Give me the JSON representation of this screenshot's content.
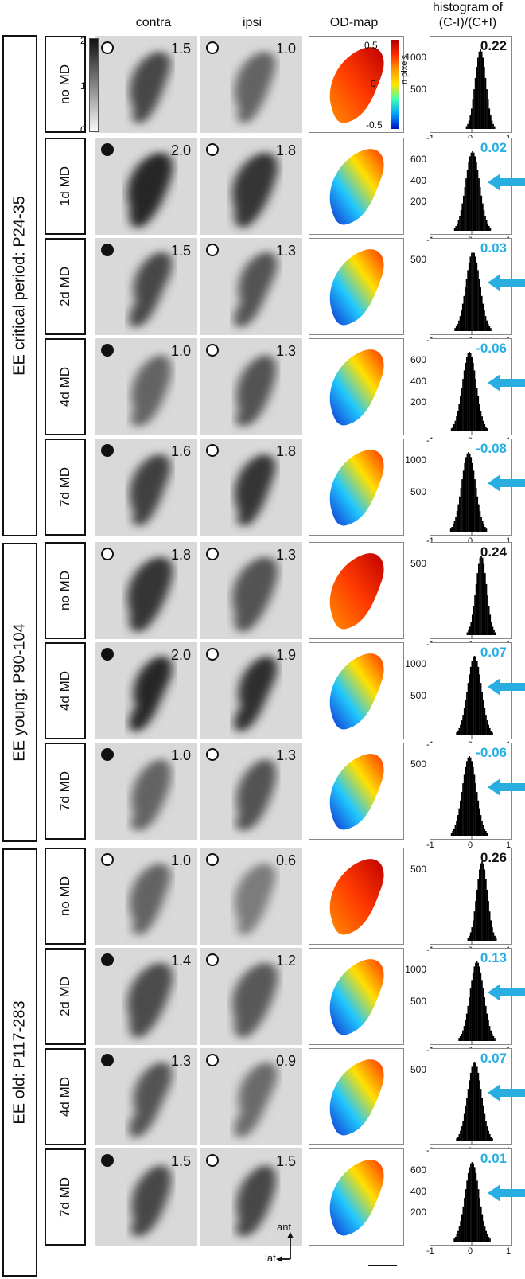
{
  "columns": {
    "contra": "contra",
    "ipsi": "ipsi",
    "od_map": "OD-map",
    "histogram_line1": "histogram of",
    "histogram_line2": "(C-I)/(C+I)"
  },
  "groups": [
    {
      "label": "EE critical period: P24-35"
    },
    {
      "label": "EE young: P90-104"
    },
    {
      "label": "EE old: P117-283"
    }
  ],
  "rows": [
    {
      "label": "no MD",
      "contra_eye": "open",
      "ipsi_eye": "open",
      "contra_val": "1.5",
      "ipsi_val": "1.0",
      "hist_val": "0.22",
      "hist_color": "#111111",
      "arrow": false,
      "yticks": [
        "1000",
        "500"
      ]
    },
    {
      "label": "1d MD",
      "contra_eye": "closed",
      "ipsi_eye": "open",
      "contra_val": "2.0",
      "ipsi_val": "1.8",
      "hist_val": "0.02",
      "hist_color": "#29aee2",
      "arrow": true,
      "yticks": [
        "600",
        "400",
        "200"
      ]
    },
    {
      "label": "2d MD",
      "contra_eye": "closed",
      "ipsi_eye": "open",
      "contra_val": "1.5",
      "ipsi_val": "1.3",
      "hist_val": "0.03",
      "hist_color": "#29aee2",
      "arrow": true,
      "yticks": [
        "500"
      ]
    },
    {
      "label": "4d MD",
      "contra_eye": "closed",
      "ipsi_eye": "open",
      "contra_val": "1.0",
      "ipsi_val": "1.3",
      "hist_val": "-0.06",
      "hist_color": "#29aee2",
      "arrow": true,
      "yticks": [
        "600",
        "400",
        "200"
      ]
    },
    {
      "label": "7d MD",
      "contra_eye": "closed",
      "ipsi_eye": "open",
      "contra_val": "1.6",
      "ipsi_val": "1.8",
      "hist_val": "-0.08",
      "hist_color": "#29aee2",
      "arrow": true,
      "yticks": [
        "1000",
        "500"
      ]
    },
    {
      "label": "no MD",
      "contra_eye": "open",
      "ipsi_eye": "open",
      "contra_val": "1.8",
      "ipsi_val": "1.3",
      "hist_val": "0.24",
      "hist_color": "#111111",
      "arrow": false,
      "yticks": [
        "500"
      ]
    },
    {
      "label": "4d MD",
      "contra_eye": "closed",
      "ipsi_eye": "open",
      "contra_val": "2.0",
      "ipsi_val": "1.9",
      "hist_val": "0.07",
      "hist_color": "#29aee2",
      "arrow": true,
      "yticks": [
        "1000",
        "500"
      ]
    },
    {
      "label": "7d MD",
      "contra_eye": "closed",
      "ipsi_eye": "open",
      "contra_val": "1.0",
      "ipsi_val": "1.3",
      "hist_val": "-0.06",
      "hist_color": "#29aee2",
      "arrow": true,
      "yticks": [
        "500"
      ]
    },
    {
      "label": "no MD",
      "contra_eye": "open",
      "ipsi_eye": "open",
      "contra_val": "1.0",
      "ipsi_val": "0.6",
      "hist_val": "0.26",
      "hist_color": "#111111",
      "arrow": false,
      "yticks": [
        "500"
      ]
    },
    {
      "label": "2d MD",
      "contra_eye": "closed",
      "ipsi_eye": "open",
      "contra_val": "1.4",
      "ipsi_val": "1.2",
      "hist_val": "0.13",
      "hist_color": "#29aee2",
      "arrow": true,
      "yticks": [
        "1000",
        "500"
      ]
    },
    {
      "label": "4d MD",
      "contra_eye": "closed",
      "ipsi_eye": "open",
      "contra_val": "1.3",
      "ipsi_val": "0.9",
      "hist_val": "0.07",
      "hist_color": "#29aee2",
      "arrow": true,
      "yticks": [
        "500"
      ]
    },
    {
      "label": "7d MD",
      "contra_eye": "closed",
      "ipsi_eye": "open",
      "contra_val": "1.5",
      "ipsi_val": "1.5",
      "hist_val": "0.01",
      "hist_color": "#29aee2",
      "arrow": true,
      "yticks": [
        "600",
        "400",
        "200"
      ]
    }
  ],
  "greyscale_bar": {
    "ticks": [
      "2",
      "1",
      "0"
    ]
  },
  "od_colorbar": {
    "ticks": [
      "0.5",
      "0",
      "-0.5"
    ],
    "label": "n pixels"
  },
  "hist_xticks": [
    "-1",
    "0",
    "1"
  ],
  "orientation": {
    "ant": "ant",
    "lat": "lat"
  }
}
